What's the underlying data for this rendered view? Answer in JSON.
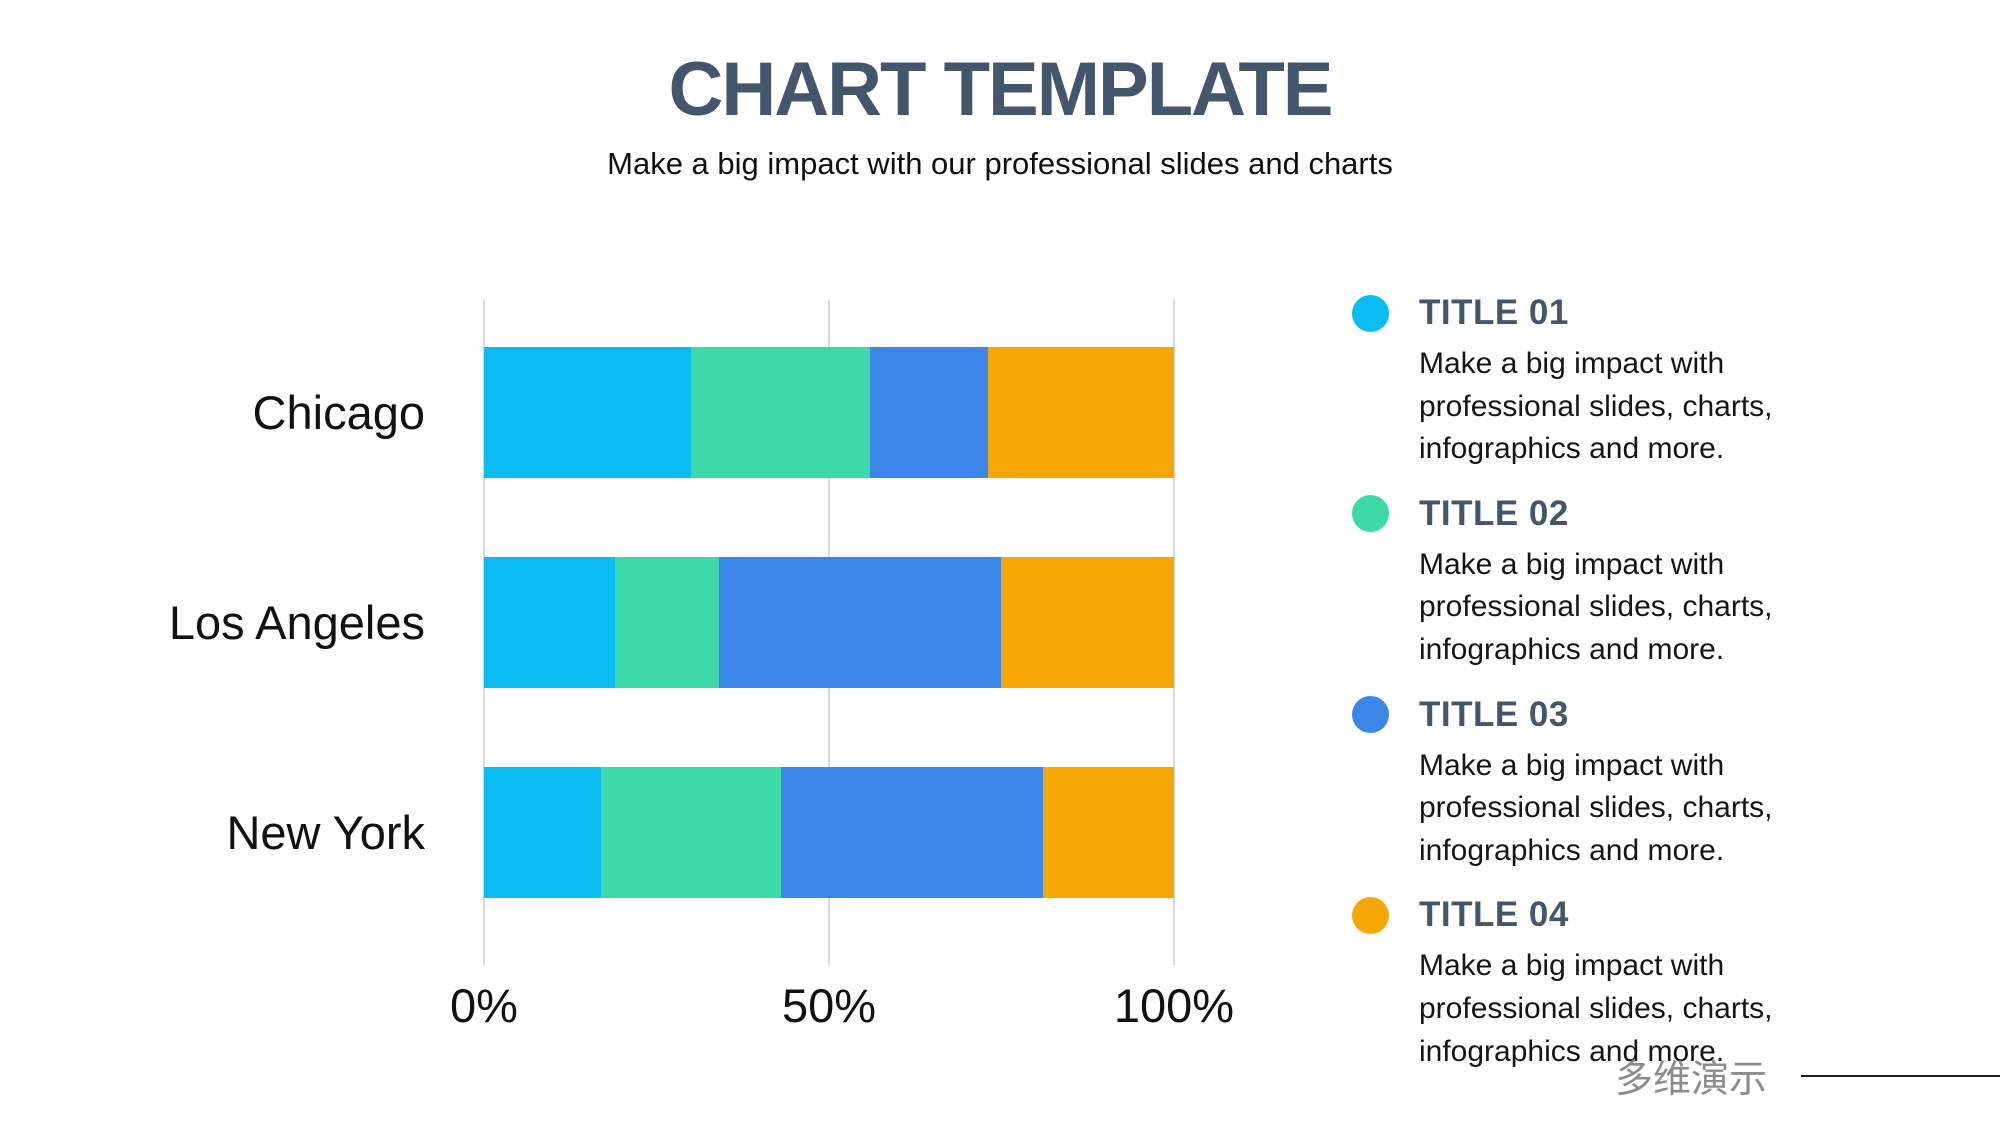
{
  "header": {
    "title": "CHART TEMPLATE",
    "subtitle": "Make a big impact with our professional slides and charts"
  },
  "chart_data": {
    "type": "bar",
    "orientation": "horizontal",
    "stacked": true,
    "title": "",
    "xlabel": "",
    "ylabel": "",
    "xlim": [
      0,
      100
    ],
    "grid": "vertical",
    "legend_position": "right",
    "categories": [
      "Chicago",
      "Los Angeles",
      "New York"
    ],
    "series": [
      {
        "name": "TITLE 01",
        "color": "#0ABCF2",
        "values": [
          30,
          19,
          17
        ]
      },
      {
        "name": "TITLE 02",
        "color": "#3ED9A9",
        "values": [
          26,
          15,
          26
        ]
      },
      {
        "name": "TITLE 03",
        "color": "#3C86E8",
        "values": [
          17,
          41,
          38
        ]
      },
      {
        "name": "TITLE 04",
        "color": "#F5A706",
        "values": [
          27,
          25,
          19
        ]
      }
    ],
    "x_ticks": [
      {
        "label": "0%",
        "value": 0
      },
      {
        "label": "50%",
        "value": 50
      },
      {
        "label": "100%",
        "value": 100
      }
    ]
  },
  "legend": {
    "items": [
      {
        "label": "TITLE 01",
        "color": "#0ABCF2",
        "description": "Make a big impact with professional slides, charts, infographics and more."
      },
      {
        "label": "TITLE 02",
        "color": "#3ED9A9",
        "description": "Make a big impact with professional slides, charts, infographics and more."
      },
      {
        "label": "TITLE 03",
        "color": "#3C86E8",
        "description": "Make a big impact with professional slides, charts, infographics and more."
      },
      {
        "label": "TITLE 04",
        "color": "#F5A706",
        "description": "Make a big impact with professional slides, charts, infographics and more."
      }
    ]
  },
  "watermark": {
    "text": "多维演示"
  },
  "colors": {
    "heading": "#44566C",
    "gridline": "#D9D9D9",
    "body_text": "#111111",
    "watermark_text": "#8C8C8C"
  }
}
